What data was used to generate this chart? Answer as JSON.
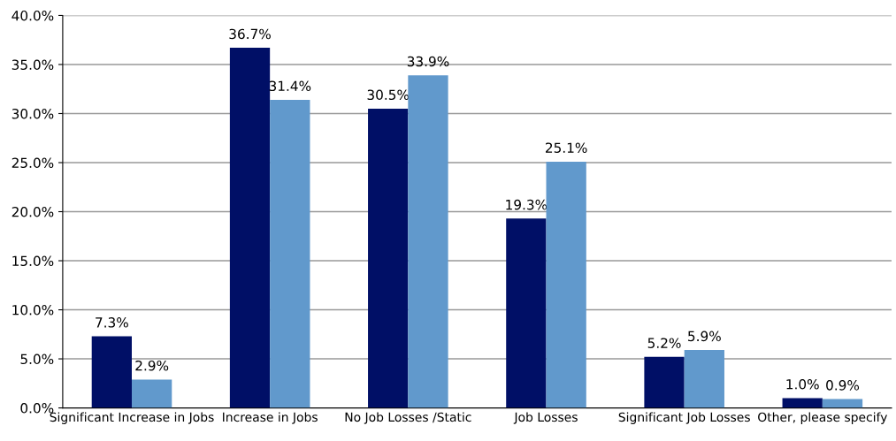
{
  "chart_data": {
    "type": "bar",
    "categories": [
      "Significant Increase in Jobs",
      "Increase in Jobs",
      "No Job Losses /Static",
      "Job Losses",
      "Significant Job Losses",
      "Other, please specify"
    ],
    "series": [
      {
        "color": "#000f66",
        "values": [
          7.3,
          36.7,
          30.5,
          19.3,
          5.2,
          1.0
        ],
        "value_labels": [
          "7.3%",
          "36.7%",
          "30.5%",
          "19.3%",
          "5.2%",
          "1.0%"
        ]
      },
      {
        "color": "#6199cc",
        "values": [
          2.9,
          31.4,
          33.9,
          25.1,
          5.9,
          0.9
        ],
        "value_labels": [
          "2.9%",
          "31.4%",
          "33.9%",
          "25.1%",
          "5.9%",
          "0.9%"
        ]
      }
    ],
    "ylim": [
      0,
      40
    ],
    "yticks": [
      {
        "value": 0,
        "label": "0.0%"
      },
      {
        "value": 5,
        "label": "5.0%"
      },
      {
        "value": 10,
        "label": "10.0%"
      },
      {
        "value": 15,
        "label": "15.0%"
      },
      {
        "value": 20,
        "label": "20.0%"
      },
      {
        "value": 25,
        "label": "25.0%"
      },
      {
        "value": 30,
        "label": "30.0%"
      },
      {
        "value": 35,
        "label": "35.0%"
      },
      {
        "value": 40,
        "label": "40.0%"
      }
    ],
    "grid": "y"
  }
}
